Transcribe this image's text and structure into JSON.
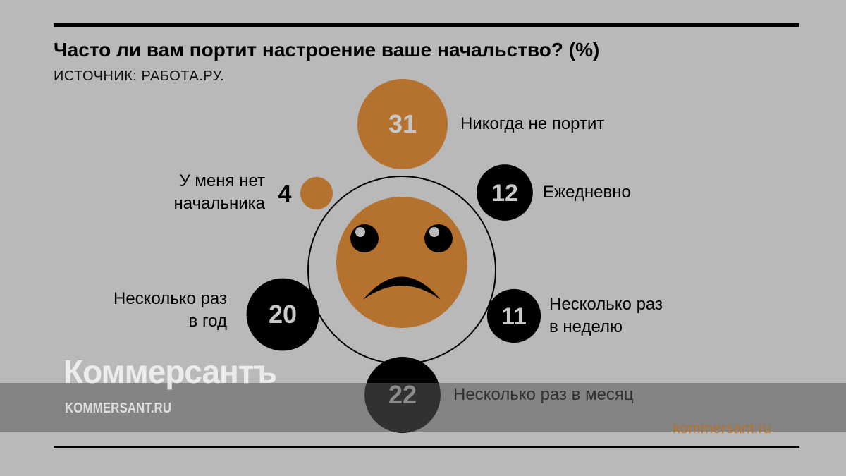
{
  "title": "Часто ли вам портит настроение ваше начальство? (%)",
  "source": "ИСТОЧНИК: РАБОТА.РУ.",
  "watermark": {
    "brand": "Коммерсантъ",
    "url": "KOMMERSANT.RU"
  },
  "site": "kommersant.ru",
  "colors": {
    "orange": "#b5722f",
    "black": "#000000",
    "number": "#c8c8c8",
    "background": "#b9b9b9"
  },
  "chart_data": {
    "type": "bubble",
    "title": "Часто ли вам портит настроение ваше начальство? (%)",
    "center_icon": "sad-face-icon",
    "items": [
      {
        "label": "Никогда не портит",
        "value": 31,
        "color": "orange"
      },
      {
        "label": "Ежедневно",
        "value": 12,
        "color": "black"
      },
      {
        "label": "Несколько раз в неделю",
        "value": 11,
        "color": "black"
      },
      {
        "label": "Несколько раз в месяц",
        "value": 22,
        "color": "black"
      },
      {
        "label": "Несколько раз в год",
        "value": 20,
        "color": "black"
      },
      {
        "label": "У меня нет начальника",
        "value": 4,
        "color": "orange"
      }
    ]
  }
}
